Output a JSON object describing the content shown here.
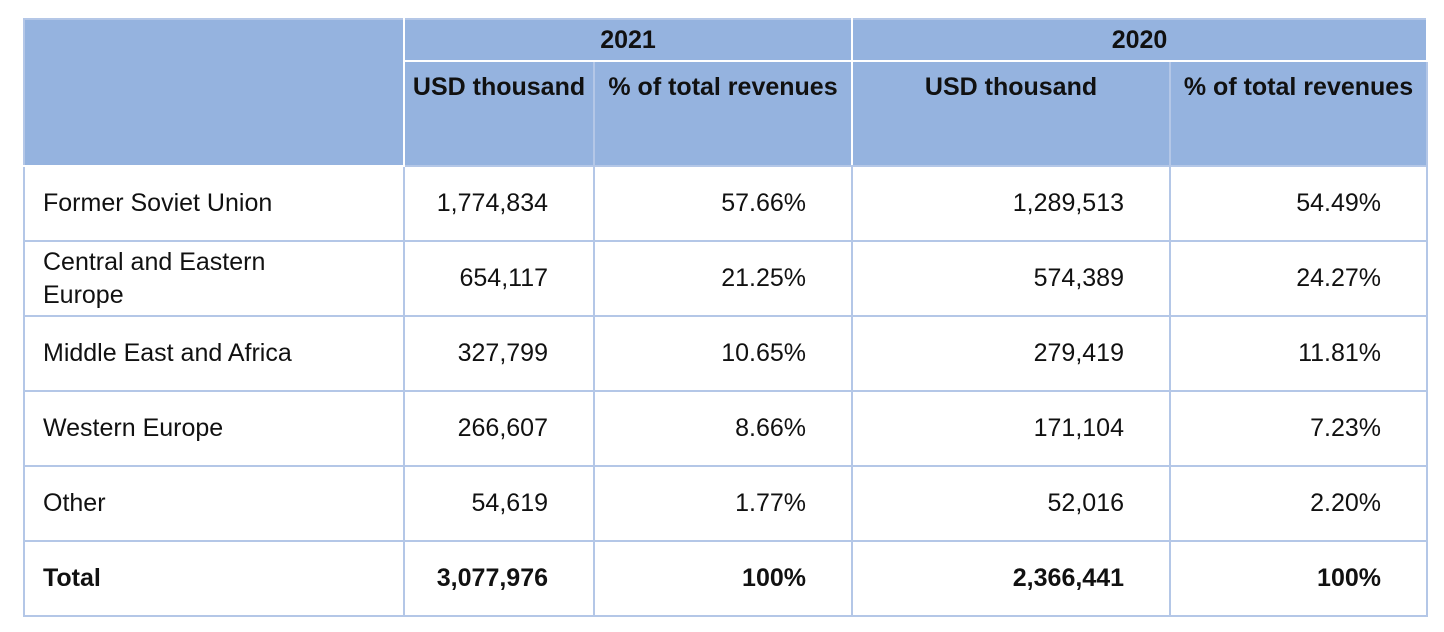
{
  "header": {
    "year_2021": "2021",
    "year_2020": "2020",
    "usd_thousand": "USD thousand",
    "pct_total": "% of total revenues"
  },
  "rows": [
    {
      "region": "Former Soviet Union",
      "usd_2021": "1,774,834",
      "pct_2021": "57.66%",
      "usd_2020": "1,289,513",
      "pct_2020": "54.49%"
    },
    {
      "region": "Central and Eastern Europe",
      "usd_2021": "654,117",
      "pct_2021": "21.25%",
      "usd_2020": "574,389",
      "pct_2020": "24.27%"
    },
    {
      "region": "Middle East and Africa",
      "usd_2021": "327,799",
      "pct_2021": "10.65%",
      "usd_2020": "279,419",
      "pct_2020": "11.81%"
    },
    {
      "region": "Western Europe",
      "usd_2021": "266,607",
      "pct_2021": "8.66%",
      "usd_2020": "171,104",
      "pct_2020": "7.23%"
    },
    {
      "region": "Other",
      "usd_2021": "54,619",
      "pct_2021": "1.77%",
      "usd_2020": "52,016",
      "pct_2020": "2.20%"
    }
  ],
  "total": {
    "region": "Total",
    "usd_2021": "3,077,976",
    "pct_2021": "100%",
    "usd_2020": "2,366,441",
    "pct_2020": "100%"
  }
}
